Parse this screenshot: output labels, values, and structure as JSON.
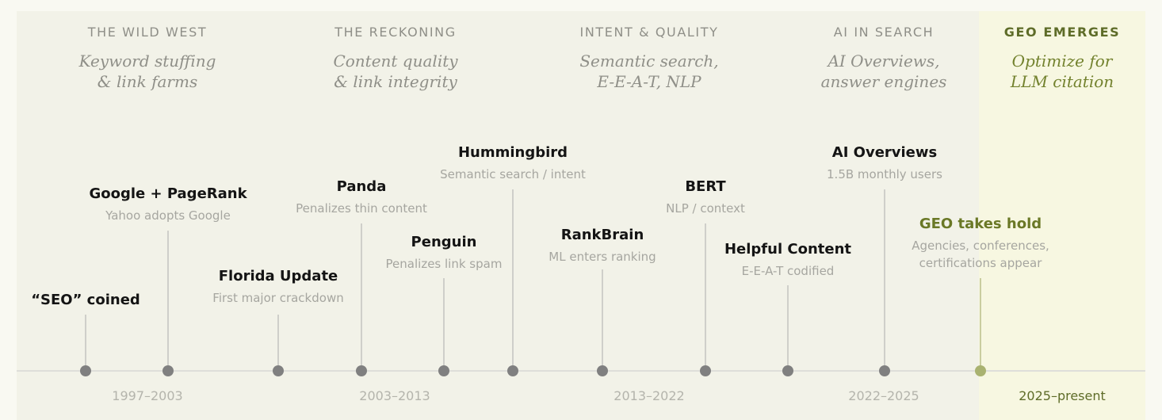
{
  "eras": [
    {
      "title": "THE WILD WEST",
      "subtitle_1": "Keyword stuffing",
      "subtitle_2": "& link farms"
    },
    {
      "title": "THE RECKONING",
      "subtitle_1": "Content quality",
      "subtitle_2": "& link integrity"
    },
    {
      "title": "INTENT & QUALITY",
      "subtitle_1": "Semantic search,",
      "subtitle_2": "E-E-A-T, NLP"
    },
    {
      "title": "AI IN SEARCH",
      "subtitle_1": "AI Overviews,",
      "subtitle_2": "answer engines"
    },
    {
      "title": "GEO EMERGES",
      "subtitle_1": "Optimize for",
      "subtitle_2": "LLM citation"
    }
  ],
  "events": [
    {
      "title": "“SEO” coined",
      "subtitle": ""
    },
    {
      "title": "Google + PageRank",
      "subtitle": "Yahoo adopts Google"
    },
    {
      "title": "Florida Update",
      "subtitle": "First major crackdown"
    },
    {
      "title": "Panda",
      "subtitle": "Penalizes thin content"
    },
    {
      "title": "Penguin",
      "subtitle": "Penalizes link spam"
    },
    {
      "title": "Hummingbird",
      "subtitle": "Semantic search / intent"
    },
    {
      "title": "RankBrain",
      "subtitle": "ML enters ranking"
    },
    {
      "title": "BERT",
      "subtitle": "NLP / context"
    },
    {
      "title": "Helpful Content",
      "subtitle": "E-E-A-T codified"
    },
    {
      "title": "AI Overviews",
      "subtitle": "1.5B monthly users"
    },
    {
      "title": "GEO takes hold",
      "subtitle_1": "Agencies, conferences,",
      "subtitle_2": "certifications appear"
    }
  ],
  "periods": [
    "1997–2003",
    "2003–2013",
    "2013–2022",
    "2022–2025",
    "2025–present"
  ],
  "colors": {
    "background": "#f9f9f2",
    "main_panel": "#f2f2e8",
    "geo_panel": "#f7f7e1",
    "geo_accent": "#5e6c28",
    "dot": "#808080",
    "geo_dot": "#a9b270"
  }
}
